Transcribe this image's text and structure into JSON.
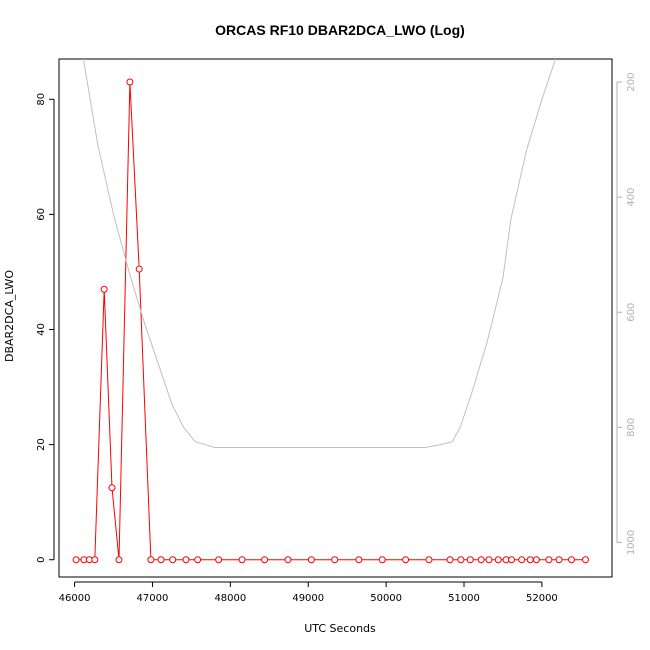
{
  "chart_data": {
    "type": "line",
    "title": "ORCAS RF10 DBAR2DCA_LWO (Log)",
    "xlabel": "UTC Seconds",
    "ylabel": "DBAR2DCA_LWO",
    "xlim": [
      45800,
      52900
    ],
    "ylim": [
      -3,
      87
    ],
    "x_ticks": [
      46000,
      47000,
      48000,
      49000,
      50000,
      51000,
      52000
    ],
    "y_ticks": [
      0,
      20,
      40,
      60,
      80
    ],
    "y2_ticks": [
      200,
      400,
      600,
      800,
      1000
    ],
    "y2_range": [
      1060,
      160
    ],
    "y2_inverted": true,
    "grid": false,
    "series": [
      {
        "style": "line+points",
        "color": "#ff0000",
        "x": [
          46020,
          46120,
          46190,
          46260,
          46380,
          46480,
          46570,
          46710,
          46830,
          46980,
          47110,
          47260,
          47430,
          47580,
          47850,
          48150,
          48440,
          48740,
          49040,
          49340,
          49650,
          49950,
          50250,
          50550,
          50820,
          50960,
          51080,
          51220,
          51320,
          51440,
          51540,
          51610,
          51740,
          51850,
          51930,
          52090,
          52220,
          52380,
          52560
        ],
        "values": [
          0,
          0,
          0,
          0,
          47,
          12.5,
          0,
          83,
          50.5,
          0,
          0,
          0,
          0,
          0,
          0,
          0,
          0,
          0,
          0,
          0,
          0,
          0,
          0,
          0,
          0,
          0,
          0,
          0,
          0,
          0,
          0,
          0,
          0,
          0,
          0,
          0,
          0,
          0,
          0
        ]
      },
      {
        "style": "line",
        "color": "#c0c0c0",
        "axis": "right",
        "x": [
          46100,
          46300,
          46500,
          46700,
          46900,
          47100,
          47250,
          47400,
          47550,
          47800,
          48000,
          49000,
          50000,
          50500,
          50700,
          50850,
          50950,
          51100,
          51300,
          51500,
          51600,
          51800,
          52000,
          52200
        ],
        "values": [
          150,
          310,
          430,
          530,
          620,
          700,
          760,
          800,
          825,
          835,
          835,
          835,
          835,
          835,
          830,
          825,
          800,
          740,
          650,
          540,
          440,
          320,
          230,
          150
        ]
      }
    ]
  }
}
